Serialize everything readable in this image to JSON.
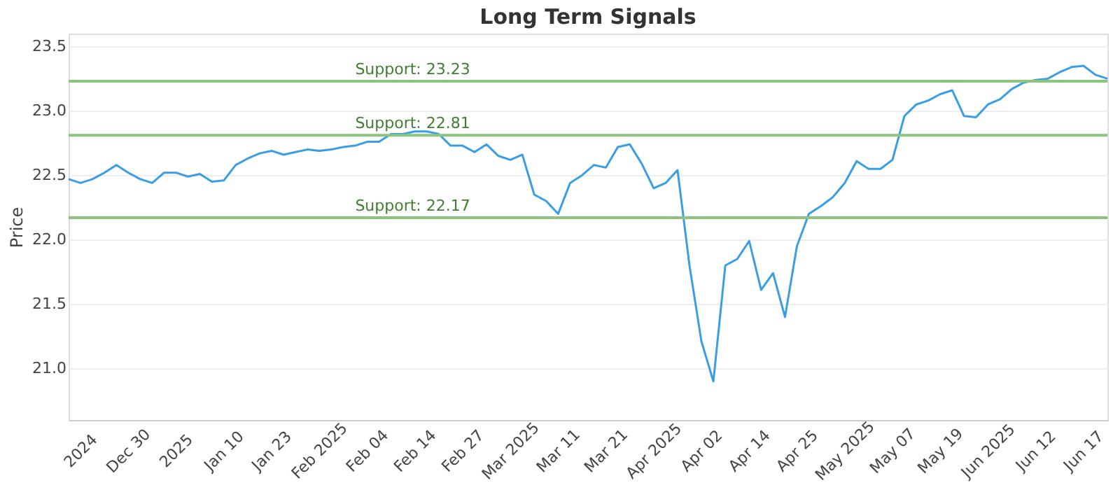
{
  "chart_data": {
    "type": "line",
    "title": "Long Term Signals",
    "ylabel": "Price",
    "categories": [
      null,
      "2024",
      null,
      null,
      null,
      "Dec 30",
      null,
      null,
      null,
      "2025",
      null,
      null,
      null,
      "Jan 10",
      null,
      null,
      null,
      "Jan 23",
      null,
      null,
      null,
      "Feb 2025",
      null,
      null,
      null,
      "Feb 04",
      null,
      null,
      null,
      "Feb 14",
      null,
      null,
      null,
      "Feb 27",
      null,
      null,
      null,
      "Mar 2025",
      null,
      null,
      null,
      "Mar 11",
      null,
      null,
      null,
      "Mar 21",
      null,
      null,
      null,
      "Apr 2025",
      null,
      null,
      null,
      "Apr 02",
      null,
      null,
      null,
      "Apr 14",
      null,
      null,
      null,
      "Apr 25",
      null,
      null,
      null,
      "May 2025",
      null,
      null,
      null,
      "May 07",
      null,
      null,
      null,
      "May 19",
      null,
      null,
      null,
      "Jun 2025",
      null,
      null,
      null,
      "Jun 12",
      null,
      null,
      null,
      "Jun 17",
      null,
      null
    ],
    "series": [
      {
        "color": "#3a9ee4",
        "values": [
          22.47,
          22.44,
          22.47,
          22.52,
          22.58,
          22.52,
          22.47,
          22.44,
          22.52,
          22.52,
          22.49,
          22.51,
          22.45,
          22.46,
          22.58,
          22.63,
          22.67,
          22.69,
          22.66,
          22.68,
          22.7,
          22.69,
          22.7,
          22.72,
          22.73,
          22.76,
          22.76,
          22.82,
          22.82,
          22.84,
          22.84,
          22.82,
          22.73,
          22.73,
          22.68,
          22.74,
          22.65,
          22.62,
          22.66,
          22.35,
          22.3,
          22.2,
          22.44,
          22.5,
          22.58,
          22.56,
          22.72,
          22.74,
          22.59,
          22.4,
          22.44,
          22.54,
          21.8,
          21.21,
          20.9,
          21.8,
          21.85,
          21.99,
          21.61,
          21.74,
          21.4,
          21.95,
          22.2,
          22.26,
          22.33,
          22.44,
          22.61,
          22.55,
          22.55,
          22.62,
          22.96,
          23.05,
          23.08,
          23.13,
          23.16,
          22.96,
          22.95,
          23.05,
          23.09,
          23.17,
          23.22,
          23.24,
          23.25,
          23.3,
          23.34,
          23.35,
          23.28,
          23.25
        ]
      }
    ],
    "ylim": [
      20.6,
      23.6
    ],
    "yticks": [
      {
        "value": 21,
        "label": "21.0"
      },
      21.5,
      {
        "value": 22,
        "label": "22.0"
      },
      22.5,
      {
        "value": 23,
        "label": "23.0"
      },
      23.5
    ],
    "ref_lines": [
      {
        "axis": "y",
        "value": 23.23,
        "label": "Support: 23.23",
        "color": "#8cc47e"
      },
      {
        "axis": "y",
        "value": 22.81,
        "label": "Support: 22.81",
        "color": "#8cc47e"
      },
      {
        "axis": "y",
        "value": 22.17,
        "label": "Support: 22.17",
        "color": "#8cc47e"
      }
    ],
    "grid": "y",
    "marker": "none",
    "line_style": "solid"
  }
}
